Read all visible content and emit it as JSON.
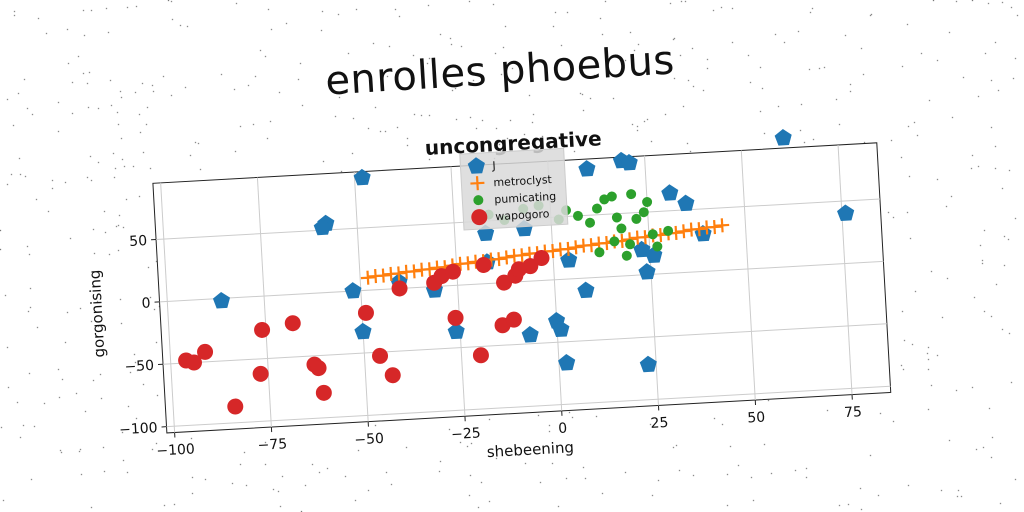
{
  "figure": {
    "suptitle": "enrolles phoebus"
  },
  "chart_data": {
    "type": "scatter",
    "title": "uncongregative",
    "xlabel": "shebeening",
    "ylabel": "gorgonising",
    "xlim": [
      -102,
      85
    ],
    "ylim": [
      -105,
      95
    ],
    "xticks": [
      "−100",
      "−75",
      "−50",
      "−25",
      "0",
      "25",
      "50",
      "75"
    ],
    "xtick_values": [
      -100,
      -75,
      -50,
      -25,
      0,
      25,
      50,
      75
    ],
    "yticks": [
      "−100",
      "−50",
      "0",
      "50"
    ],
    "ytick_values": [
      -100,
      -50,
      0,
      50
    ],
    "grid": true,
    "legend_position": "top-center",
    "series": [
      {
        "name": "J",
        "marker": "pentagon",
        "color": "#1f77b4",
        "points": [
          [
            -86,
            -2
          ],
          [
            -58,
            55
          ],
          [
            -59,
            52
          ],
          [
            -48,
            90
          ],
          [
            -52,
            0
          ],
          [
            -50,
            -33
          ],
          [
            -40,
            5
          ],
          [
            -31,
            -3
          ],
          [
            -26,
            -37
          ],
          [
            -17,
            40
          ],
          [
            -17,
            17
          ],
          [
            -7,
            -43
          ],
          [
            -7,
            42
          ],
          [
            0,
            -33
          ],
          [
            1,
            -40
          ],
          [
            2,
            -67
          ],
          [
            4,
            15
          ],
          [
            8,
            -10
          ],
          [
            10,
            87
          ],
          [
            19,
            92
          ],
          [
            21,
            90
          ],
          [
            23,
            -72
          ],
          [
            23,
            20
          ],
          [
            24,
            2
          ],
          [
            26,
            15
          ],
          [
            31,
            64
          ],
          [
            35,
            55
          ],
          [
            39,
            30
          ],
          [
            61,
            103
          ],
          [
            76,
            40
          ]
        ]
      },
      {
        "name": "metroclyst",
        "marker": "plus",
        "color": "#ff7f0e",
        "points": [
          [
            -48,
            10
          ],
          [
            -46,
            11
          ],
          [
            -44,
            11
          ],
          [
            -42,
            12
          ],
          [
            -40,
            12
          ],
          [
            -38,
            13
          ],
          [
            -36,
            13
          ],
          [
            -34,
            14
          ],
          [
            -32,
            14
          ],
          [
            -30,
            15
          ],
          [
            -28,
            15
          ],
          [
            -26,
            16
          ],
          [
            -24,
            17
          ],
          [
            -22,
            17
          ],
          [
            -20,
            18
          ],
          [
            -18,
            18
          ],
          [
            -16,
            19
          ],
          [
            -14,
            19
          ],
          [
            -12,
            20
          ],
          [
            -10,
            21
          ],
          [
            -8,
            21
          ],
          [
            -6,
            22
          ],
          [
            -4,
            22
          ],
          [
            -2,
            23
          ],
          [
            0,
            23
          ],
          [
            2,
            24
          ],
          [
            4,
            24
          ],
          [
            6,
            25
          ],
          [
            8,
            26
          ],
          [
            10,
            26
          ],
          [
            12,
            27
          ],
          [
            14,
            27
          ],
          [
            16,
            28
          ],
          [
            18,
            28
          ],
          [
            20,
            29
          ],
          [
            22,
            30
          ],
          [
            24,
            30
          ],
          [
            26,
            31
          ],
          [
            28,
            31
          ],
          [
            30,
            32
          ],
          [
            32,
            32
          ],
          [
            34,
            33
          ],
          [
            36,
            34
          ],
          [
            38,
            34
          ],
          [
            40,
            35
          ],
          [
            42,
            35
          ],
          [
            44,
            36
          ]
        ]
      },
      {
        "name": "pumicating",
        "marker": "circle-small",
        "color": "#2ca02c",
        "points": [
          [
            -16,
            55
          ],
          [
            -12,
            50
          ],
          [
            -7,
            58
          ],
          [
            -3,
            60
          ],
          [
            2,
            48
          ],
          [
            4,
            55
          ],
          [
            7,
            50
          ],
          [
            10,
            44
          ],
          [
            12,
            55
          ],
          [
            14,
            62
          ],
          [
            16,
            64
          ],
          [
            17,
            47
          ],
          [
            18,
            38
          ],
          [
            21,
            65
          ],
          [
            22,
            45
          ],
          [
            24,
            50
          ],
          [
            25,
            58
          ],
          [
            16,
            28
          ],
          [
            20,
            25
          ],
          [
            12,
            20
          ],
          [
            26,
            32
          ],
          [
            30,
            34
          ],
          [
            27,
            22
          ],
          [
            19,
            16
          ]
        ]
      },
      {
        "name": "wapogoro",
        "marker": "circle-large",
        "color": "#d62728",
        "points": [
          [
            -96,
            -48
          ],
          [
            -94,
            -50
          ],
          [
            -91,
            -42
          ],
          [
            -84,
            -87
          ],
          [
            -77,
            -62
          ],
          [
            -76,
            -27
          ],
          [
            -68,
            -23
          ],
          [
            -63,
            -57
          ],
          [
            -62,
            -60
          ],
          [
            -61,
            -80
          ],
          [
            -49,
            -18
          ],
          [
            -46,
            -53
          ],
          [
            -43,
            -69
          ],
          [
            -40,
            0
          ],
          [
            -31,
            3
          ],
          [
            -29,
            8
          ],
          [
            -26,
            -26
          ],
          [
            -26,
            11
          ],
          [
            -20,
            -57
          ],
          [
            -14,
            -34
          ],
          [
            -13,
            0
          ],
          [
            -10,
            5
          ],
          [
            -6,
            12
          ],
          [
            -3,
            18
          ],
          [
            -18,
            15
          ],
          [
            -9,
            10
          ],
          [
            -11,
            -30
          ]
        ]
      }
    ]
  }
}
